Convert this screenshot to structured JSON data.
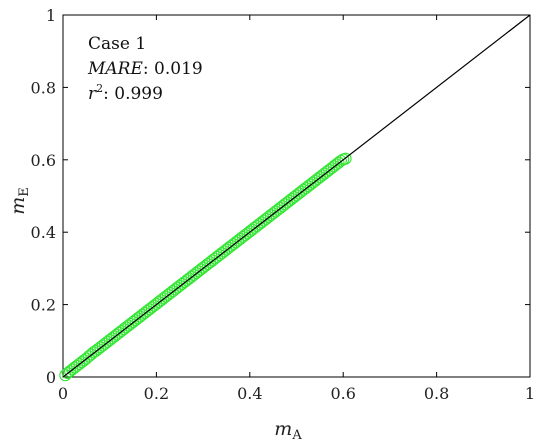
{
  "chart_data": {
    "type": "scatter",
    "xlabel": "m",
    "xlabel_sub": "A",
    "ylabel": "m",
    "ylabel_sub": "E",
    "xlim": [
      0,
      1
    ],
    "ylim": [
      0,
      1
    ],
    "xticks": [
      0,
      0.2,
      0.4,
      0.6,
      0.8,
      1
    ],
    "yticks": [
      0,
      0.2,
      0.4,
      0.6,
      0.8,
      1
    ],
    "xtick_labels": [
      "0",
      "0.2",
      "0.4",
      "0.6",
      "0.8",
      "1"
    ],
    "ytick_labels": [
      "0",
      "0.2",
      "0.4",
      "0.6",
      "0.8",
      "1"
    ],
    "grid": false,
    "reference_line": {
      "x": [
        0,
        1
      ],
      "y": [
        0,
        1
      ],
      "color": "#000000"
    },
    "marker_color": "#33e633",
    "annotation": {
      "case": "Case 1",
      "mare_label": "MARE",
      "mare_value": ": 0.019",
      "r2_label": "r",
      "r2_sup": "2",
      "r2_value": ": 0.999"
    },
    "series": [
      {
        "x": [
          0.005,
          0.01,
          0.015,
          0.02,
          0.025,
          0.03,
          0.035,
          0.04,
          0.045,
          0.05,
          0.055,
          0.06,
          0.065,
          0.07,
          0.075,
          0.08,
          0.085,
          0.09,
          0.095,
          0.1,
          0.105,
          0.11,
          0.115,
          0.12,
          0.125,
          0.13,
          0.135,
          0.14,
          0.145,
          0.15,
          0.155,
          0.16,
          0.165,
          0.17,
          0.175,
          0.18,
          0.185,
          0.19,
          0.195,
          0.2,
          0.205,
          0.21,
          0.215,
          0.22,
          0.225,
          0.23,
          0.235,
          0.24,
          0.245,
          0.25,
          0.255,
          0.26,
          0.265,
          0.27,
          0.275,
          0.28,
          0.285,
          0.29,
          0.295,
          0.3,
          0.305,
          0.31,
          0.315,
          0.32,
          0.325,
          0.33,
          0.335,
          0.34,
          0.345,
          0.35,
          0.355,
          0.36,
          0.365,
          0.37,
          0.375,
          0.38,
          0.385,
          0.39,
          0.395,
          0.4,
          0.405,
          0.41,
          0.415,
          0.42,
          0.425,
          0.43,
          0.435,
          0.44,
          0.445,
          0.45,
          0.455,
          0.46,
          0.465,
          0.47,
          0.475,
          0.48,
          0.485,
          0.49,
          0.495,
          0.5,
          0.505,
          0.51,
          0.515,
          0.52,
          0.525,
          0.53,
          0.535,
          0.54,
          0.545,
          0.55,
          0.555,
          0.56,
          0.565,
          0.57,
          0.575,
          0.58,
          0.585,
          0.59,
          0.595,
          0.6,
          0.605
        ],
        "y": [
          0.005,
          0.011,
          0.016,
          0.021,
          0.026,
          0.031,
          0.036,
          0.041,
          0.046,
          0.051,
          0.057,
          0.062,
          0.068,
          0.072,
          0.077,
          0.082,
          0.087,
          0.092,
          0.097,
          0.102,
          0.107,
          0.112,
          0.117,
          0.122,
          0.127,
          0.132,
          0.137,
          0.142,
          0.147,
          0.152,
          0.157,
          0.162,
          0.167,
          0.172,
          0.177,
          0.182,
          0.187,
          0.192,
          0.197,
          0.202,
          0.207,
          0.212,
          0.217,
          0.222,
          0.227,
          0.232,
          0.237,
          0.242,
          0.247,
          0.252,
          0.257,
          0.262,
          0.267,
          0.272,
          0.277,
          0.282,
          0.287,
          0.292,
          0.297,
          0.302,
          0.307,
          0.312,
          0.317,
          0.322,
          0.327,
          0.332,
          0.337,
          0.342,
          0.347,
          0.352,
          0.357,
          0.362,
          0.367,
          0.372,
          0.377,
          0.382,
          0.387,
          0.392,
          0.397,
          0.402,
          0.407,
          0.412,
          0.417,
          0.422,
          0.427,
          0.432,
          0.437,
          0.442,
          0.447,
          0.452,
          0.457,
          0.462,
          0.467,
          0.472,
          0.477,
          0.482,
          0.487,
          0.492,
          0.497,
          0.502,
          0.507,
          0.512,
          0.517,
          0.522,
          0.527,
          0.532,
          0.537,
          0.542,
          0.547,
          0.552,
          0.557,
          0.562,
          0.567,
          0.572,
          0.577,
          0.582,
          0.587,
          0.592,
          0.597,
          0.601,
          0.603
        ]
      }
    ]
  }
}
